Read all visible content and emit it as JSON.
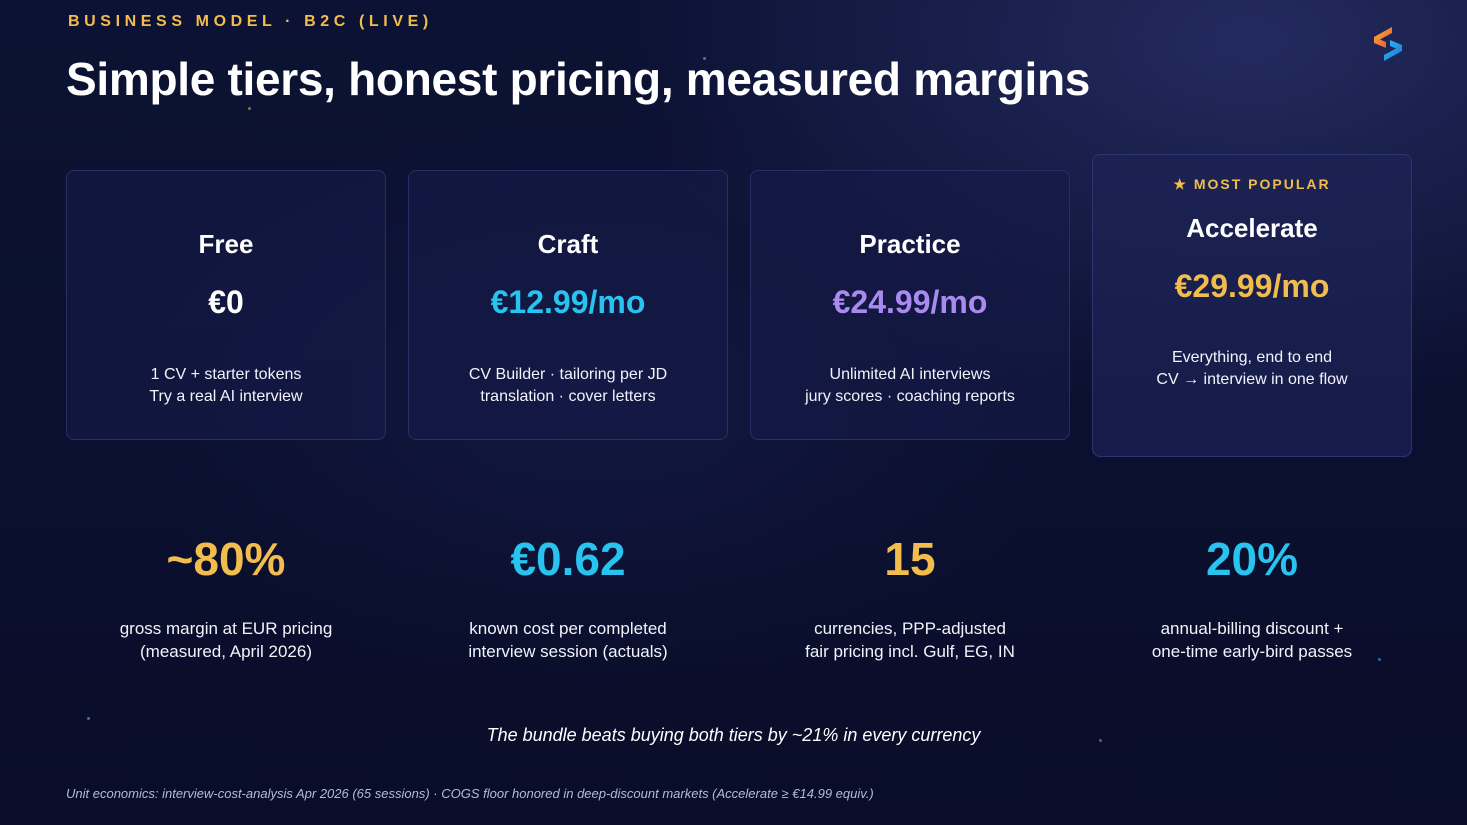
{
  "header": {
    "eyebrow": "BUSINESS MODEL · B2C (LIVE)",
    "title": "Simple tiers, honest pricing, measured margins"
  },
  "tiers": [
    {
      "name": "Free",
      "price": "€0",
      "price_color": "#ffffff",
      "desc_line1": "1 CV + starter tokens",
      "desc_line2": "Try a real AI interview"
    },
    {
      "name": "Craft",
      "price": "€12.99/mo",
      "price_color": "#28c3ef",
      "desc_line1": "CV Builder · tailoring per JD",
      "desc_line2": "translation · cover letters"
    },
    {
      "name": "Practice",
      "price": "€24.99/mo",
      "price_color": "#a98af0",
      "desc_line1": "Unlimited AI interviews",
      "desc_line2": "jury scores · coaching reports"
    },
    {
      "badge": "★ MOST POPULAR",
      "name": "Accelerate",
      "price": "€29.99/mo",
      "price_color": "#f2bd4c",
      "desc_line1": "Everything, end to end",
      "desc_line2": "CV → interview in one flow"
    }
  ],
  "stats": [
    {
      "value": "~80%",
      "color": "#f2bd4c",
      "label_line1": "gross margin at EUR pricing",
      "label_line2": "(measured, April 2026)"
    },
    {
      "value": "€0.62",
      "color": "#28c3ef",
      "label_line1": "known cost per completed",
      "label_line2": "interview session (actuals)"
    },
    {
      "value": "15",
      "color": "#f2bd4c",
      "label_line1": "currencies, PPP-adjusted",
      "label_line2": "fair pricing incl. Gulf, EG, IN"
    },
    {
      "value": "20%",
      "color": "#28c3ef",
      "label_line1": "annual-billing discount +",
      "label_line2": "one-time early-bird passes"
    }
  ],
  "tagline": "The bundle beats buying both tiers by ~21% in every currency",
  "footnote": "Unit economics: interview-cost-analysis Apr 2026 (65 sessions) · COGS floor honored in deep-discount markets (Accelerate ≥ €14.99 equiv.)",
  "colors": {
    "accent_gold": "#f2bd4c",
    "accent_cyan": "#28c3ef",
    "accent_violet": "#a98af0",
    "background": "#0b1030"
  },
  "icons": {
    "logo": "brand-s-logo-icon"
  }
}
